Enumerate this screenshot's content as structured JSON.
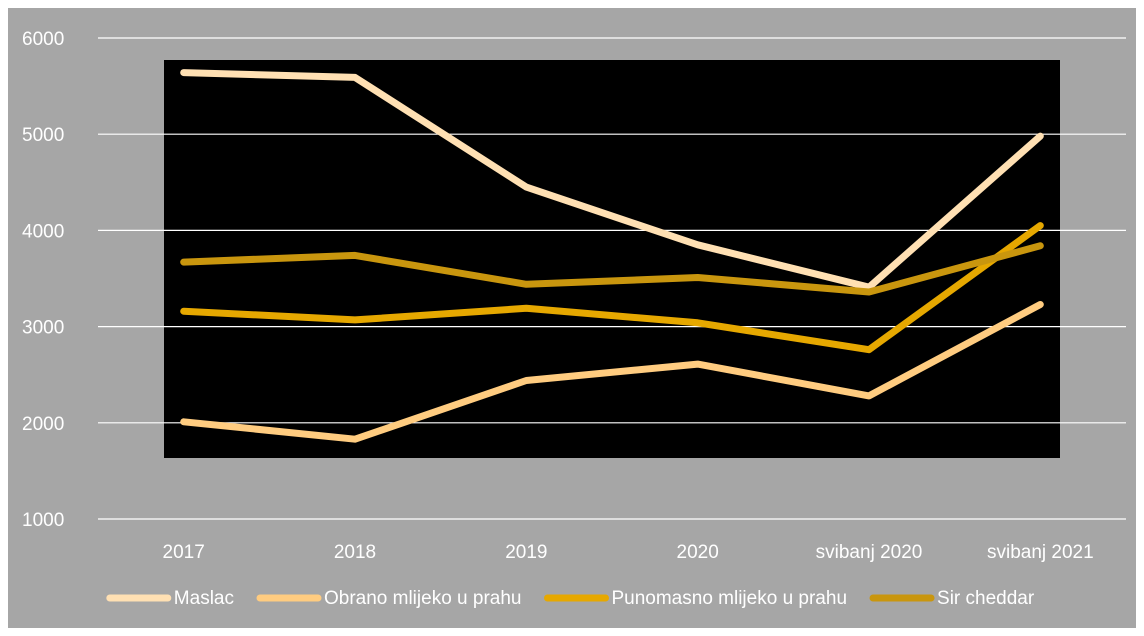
{
  "chart_data": {
    "type": "line",
    "categories": [
      "2017",
      "2018",
      "2019",
      "2020",
      "svibanj 2020",
      "svibanj 2021"
    ],
    "y_ticks": [
      "1000",
      "2000",
      "3000",
      "4000",
      "5000",
      "6000"
    ],
    "ylim": [
      1000,
      6000
    ],
    "grid": true,
    "legend_position": "bottom",
    "colors": {
      "chart_background": "#a6a6a6",
      "plot_backdrop": "#000000",
      "gridline": "#ffffff",
      "text": "#ffffff"
    },
    "series": [
      {
        "name": "Maslac",
        "color": "#ffe0b3",
        "values": [
          5640,
          5590,
          4450,
          3850,
          3410,
          4980
        ]
      },
      {
        "name": "Obrano mlijeko u prahu",
        "color": "#ffcc80",
        "values": [
          2010,
          1830,
          2440,
          2610,
          2280,
          3230
        ]
      },
      {
        "name": "Punomasno mlijeko u prahu",
        "color": "#e6a800",
        "values": [
          3160,
          3070,
          3190,
          3040,
          2760,
          4050
        ]
      },
      {
        "name": "Sir cheddar",
        "color": "#c9960e",
        "values": [
          3670,
          3740,
          3440,
          3510,
          3360,
          3840
        ]
      }
    ]
  }
}
